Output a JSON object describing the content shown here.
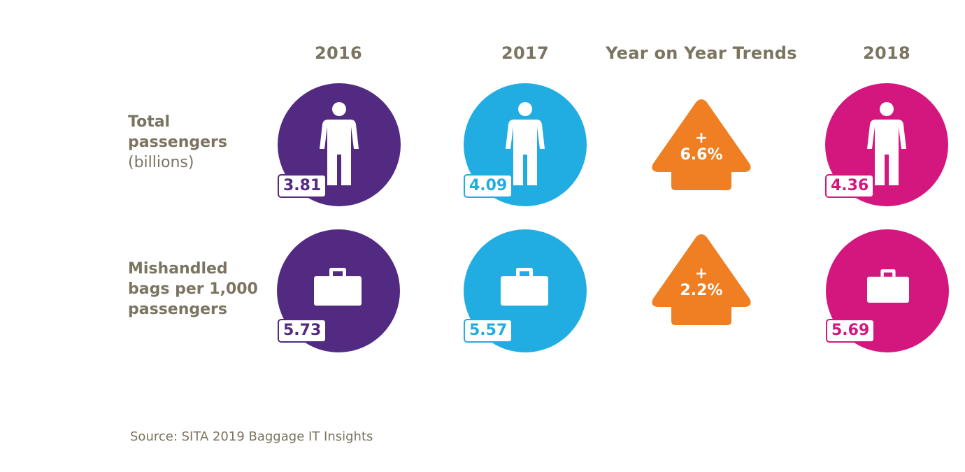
{
  "chart_data": {
    "type": "infographic",
    "columns": [
      "2016",
      "2017",
      "Year on Year Trends",
      "2018"
    ],
    "rows": [
      {
        "label_lines": [
          "Total",
          "passengers"
        ],
        "sublabel": "(billions)",
        "icon": "person-icon",
        "values": {
          "2016": "3.81",
          "2017": "4.09",
          "2018": "4.36"
        },
        "trend": {
          "sign": "+",
          "value": "6.6%",
          "direction": "up"
        }
      },
      {
        "label_lines": [
          "Mishandled",
          "bags per 1,000",
          "passengers"
        ],
        "sublabel": "",
        "icon": "briefcase-icon",
        "values": {
          "2016": "5.73",
          "2017": "5.57",
          "2018": "5.69"
        },
        "trend": {
          "sign": "+",
          "value": "2.2%",
          "direction": "up"
        }
      }
    ]
  },
  "colors": {
    "2016": "#532a81",
    "2017": "#22ade2",
    "2018": "#d4177f",
    "trend": "#ef7f22",
    "text": "#7a7460"
  },
  "source": "Source: SITA 2019 Baggage IT Insights"
}
